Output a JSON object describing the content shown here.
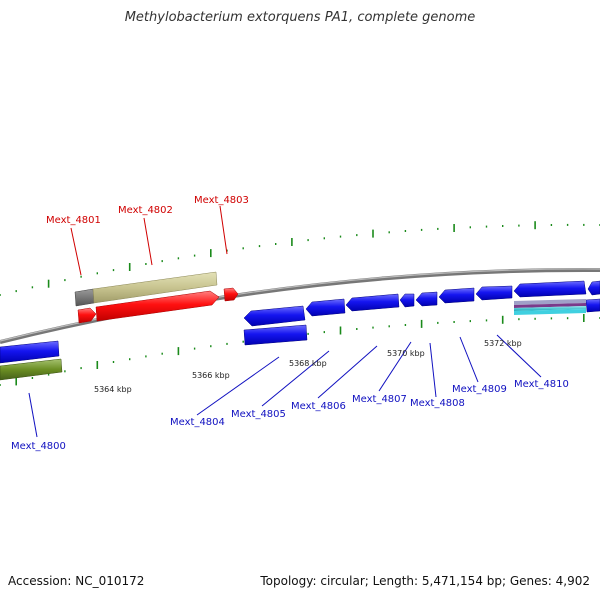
{
  "title": "Methylobacterium extorquens PA1, complete genome",
  "accession": "Accession: NC_010172",
  "genome_info": "Topology: circular; Length: 5,471,154 bp; Genes: 4,902",
  "colors": {
    "forward_gene": "#ff0000",
    "reverse_gene": "#0000ee",
    "backbone": "#888888",
    "tick": "#1a8a1a",
    "cog_tan": "#c8c490",
    "cog_olive": "#6b8e23",
    "cog_cyan": "#20c0d0"
  },
  "ticks": {
    "kbp_labels": [
      "5364 kbp",
      "5366 kbp",
      "5368 kbp",
      "5370 kbp",
      "5372 kbp"
    ]
  },
  "genes": {
    "forward": [
      "Mext_4801",
      "Mext_4802",
      "Mext_4803"
    ],
    "reverse": [
      "Mext_4800",
      "Mext_4804",
      "Mext_4805",
      "Mext_4806",
      "Mext_4807",
      "Mext_4808",
      "Mext_4809",
      "Mext_4810"
    ]
  }
}
